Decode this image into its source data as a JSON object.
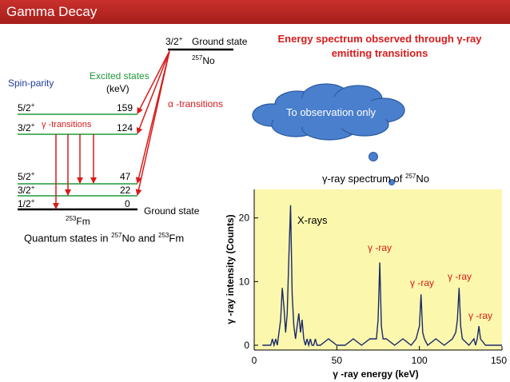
{
  "slide": {
    "title": "Gamma Decay"
  },
  "level_diagram": {
    "top_level": {
      "spin": "3/2",
      "parity": "+",
      "label": "Ground state",
      "nucleus_mass": "257",
      "nucleus": "No"
    },
    "spin_parity_label": "Spin-parity",
    "excited_states_label": "Excited states",
    "kev_label": "(keV)",
    "alpha_label": "α -transitions",
    "gamma_label": "γ -transitions",
    "levels": [
      {
        "spin": "5/2",
        "parity": "+",
        "energy": "159"
      },
      {
        "spin": "3/2",
        "parity": "+",
        "energy": "124"
      },
      {
        "spin": "5/2",
        "parity": "+",
        "energy": "47"
      },
      {
        "spin": "3/2",
        "parity": "+",
        "energy": "22"
      },
      {
        "spin": "1/2",
        "parity": "+",
        "energy": "0",
        "label": "Ground state"
      }
    ],
    "bottom_nucleus_mass": "253",
    "bottom_nucleus": "Fm"
  },
  "caption": {
    "text": "Quantum states in ",
    "mass1": "257",
    "nuc1": "No",
    "and": " and ",
    "mass2": "253",
    "nuc2": "Fm"
  },
  "spectrum_heading": "Energy spectrum observed through γ-ray emitting transitions",
  "callout": {
    "text": "To observation only"
  },
  "spectrum": {
    "title_prefix": "γ-ray spectrum of ",
    "title_mass": "257",
    "title_nucleus": "No",
    "x_label": "γ -ray energy (keV)",
    "y_label": "γ -ray intensity (Counts)",
    "x_ticks": [
      "0",
      "50",
      "100",
      "150"
    ],
    "y_ticks": [
      "0",
      "10",
      "20"
    ],
    "annotations": {
      "xrays": "X-rays",
      "gamma": "γ -ray"
    }
  },
  "chart_data": {
    "type": "line",
    "title": "γ-ray spectrum of 257No",
    "xlabel": "γ -ray energy (keV)",
    "ylabel": "γ -ray intensity (Counts)",
    "xlim": [
      0,
      150
    ],
    "ylim": [
      0,
      23
    ],
    "x": [
      5,
      10,
      11,
      12,
      13,
      14,
      15,
      16,
      17,
      18,
      19,
      20,
      21,
      22,
      23,
      24,
      25,
      26,
      27,
      28,
      29,
      30,
      31,
      32,
      33,
      34,
      35,
      36,
      37,
      38,
      40,
      45,
      50,
      55,
      60,
      65,
      70,
      74,
      75,
      76,
      77,
      78,
      80,
      85,
      90,
      95,
      98,
      99,
      100,
      101,
      102,
      103,
      105,
      110,
      115,
      120,
      122,
      123,
      124,
      125,
      126,
      130,
      133,
      134,
      135,
      136,
      137,
      140,
      145,
      150
    ],
    "values": [
      0,
      0,
      1,
      0,
      1,
      0,
      2,
      4,
      9,
      6,
      2,
      5,
      14,
      22,
      8,
      3,
      1,
      3,
      5,
      2,
      4,
      1,
      0,
      1,
      0,
      1,
      0,
      0,
      1,
      0,
      0,
      1,
      0,
      0,
      1,
      0,
      1,
      1,
      4,
      13,
      3,
      1,
      1,
      0,
      1,
      0,
      1,
      2,
      3,
      8,
      2,
      1,
      0,
      1,
      0,
      1,
      2,
      4,
      9,
      3,
      1,
      0,
      1,
      0,
      1,
      3,
      1,
      0,
      0,
      0
    ],
    "annotations": [
      {
        "text": "X-rays",
        "x": 22
      },
      {
        "text": "γ -ray",
        "x": 76
      },
      {
        "text": "γ -ray",
        "x": 101
      },
      {
        "text": "γ -ray",
        "x": 124
      },
      {
        "text": "γ -ray",
        "x": 136
      }
    ],
    "grid": false
  }
}
